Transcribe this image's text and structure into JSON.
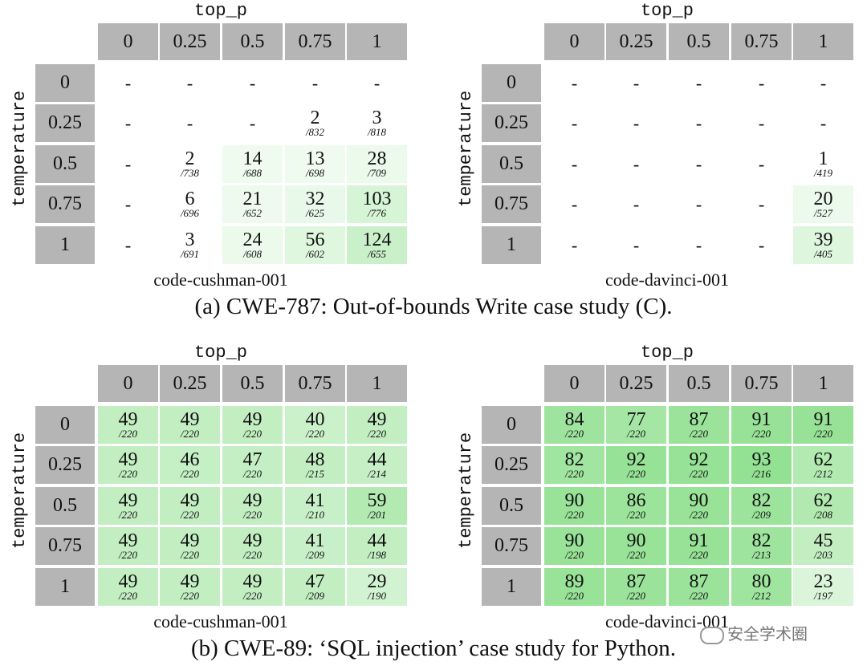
{
  "colors": {
    "header_bg": "#b5b5b5",
    "green_max": "#8fe08f"
  },
  "panels": [
    {
      "top_label": "top_p",
      "side_label": "temperature",
      "model": "code-cushman-001",
      "col_headers": [
        "0",
        "0.25",
        "0.5",
        "0.75",
        "1"
      ],
      "row_headers": [
        "0",
        "0.25",
        "0.5",
        "0.75",
        "1"
      ],
      "cells": [
        [
          {
            "v": "-"
          },
          {
            "v": "-"
          },
          {
            "v": "-"
          },
          {
            "v": "-"
          },
          {
            "v": "-"
          }
        ],
        [
          {
            "v": "-"
          },
          {
            "v": "-"
          },
          {
            "v": "-"
          },
          {
            "v": "2",
            "d": "/832"
          },
          {
            "v": "3",
            "d": "/818"
          }
        ],
        [
          {
            "v": "-"
          },
          {
            "v": "2",
            "d": "/738"
          },
          {
            "v": "14",
            "d": "/688"
          },
          {
            "v": "13",
            "d": "/698"
          },
          {
            "v": "28",
            "d": "/709"
          }
        ],
        [
          {
            "v": "-"
          },
          {
            "v": "6",
            "d": "/696"
          },
          {
            "v": "21",
            "d": "/652"
          },
          {
            "v": "32",
            "d": "/625"
          },
          {
            "v": "103",
            "d": "/776"
          }
        ],
        [
          {
            "v": "-"
          },
          {
            "v": "3",
            "d": "/691"
          },
          {
            "v": "24",
            "d": "/608"
          },
          {
            "v": "56",
            "d": "/602"
          },
          {
            "v": "124",
            "d": "/655"
          }
        ]
      ]
    },
    {
      "top_label": "top_p",
      "side_label": "temperature",
      "model": "code-davinci-001",
      "col_headers": [
        "0",
        "0.25",
        "0.5",
        "0.75",
        "1"
      ],
      "row_headers": [
        "0",
        "0.25",
        "0.5",
        "0.75",
        "1"
      ],
      "cells": [
        [
          {
            "v": "-"
          },
          {
            "v": "-"
          },
          {
            "v": "-"
          },
          {
            "v": "-"
          },
          {
            "v": "-"
          }
        ],
        [
          {
            "v": "-"
          },
          {
            "v": "-"
          },
          {
            "v": "-"
          },
          {
            "v": "-"
          },
          {
            "v": "-"
          }
        ],
        [
          {
            "v": "-"
          },
          {
            "v": "-"
          },
          {
            "v": "-"
          },
          {
            "v": "-"
          },
          {
            "v": "1",
            "d": "/419"
          }
        ],
        [
          {
            "v": "-"
          },
          {
            "v": "-"
          },
          {
            "v": "-"
          },
          {
            "v": "-"
          },
          {
            "v": "20",
            "d": "/527"
          }
        ],
        [
          {
            "v": "-"
          },
          {
            "v": "-"
          },
          {
            "v": "-"
          },
          {
            "v": "-"
          },
          {
            "v": "39",
            "d": "/405"
          }
        ]
      ]
    },
    {
      "top_label": "top_p",
      "side_label": "temperature",
      "model": "code-cushman-001",
      "col_headers": [
        "0",
        "0.25",
        "0.5",
        "0.75",
        "1"
      ],
      "row_headers": [
        "0",
        "0.25",
        "0.5",
        "0.75",
        "1"
      ],
      "cells": [
        [
          {
            "v": "49",
            "d": "/220"
          },
          {
            "v": "49",
            "d": "/220"
          },
          {
            "v": "49",
            "d": "/220"
          },
          {
            "v": "40",
            "d": "/220"
          },
          {
            "v": "49",
            "d": "/220"
          }
        ],
        [
          {
            "v": "49",
            "d": "/220"
          },
          {
            "v": "46",
            "d": "/220"
          },
          {
            "v": "47",
            "d": "/220"
          },
          {
            "v": "48",
            "d": "/215"
          },
          {
            "v": "44",
            "d": "/214"
          }
        ],
        [
          {
            "v": "49",
            "d": "/220"
          },
          {
            "v": "49",
            "d": "/220"
          },
          {
            "v": "49",
            "d": "/220"
          },
          {
            "v": "41",
            "d": "/210"
          },
          {
            "v": "59",
            "d": "/201"
          }
        ],
        [
          {
            "v": "49",
            "d": "/220"
          },
          {
            "v": "49",
            "d": "/220"
          },
          {
            "v": "49",
            "d": "/220"
          },
          {
            "v": "41",
            "d": "/209"
          },
          {
            "v": "44",
            "d": "/198"
          }
        ],
        [
          {
            "v": "49",
            "d": "/220"
          },
          {
            "v": "49",
            "d": "/220"
          },
          {
            "v": "49",
            "d": "/220"
          },
          {
            "v": "47",
            "d": "/209"
          },
          {
            "v": "29",
            "d": "/190"
          }
        ]
      ]
    },
    {
      "top_label": "top_p",
      "side_label": "temperature",
      "model": "code-davinci-001",
      "col_headers": [
        "0",
        "0.25",
        "0.5",
        "0.75",
        "1"
      ],
      "row_headers": [
        "0",
        "0.25",
        "0.5",
        "0.75",
        "1"
      ],
      "cells": [
        [
          {
            "v": "84",
            "d": "/220"
          },
          {
            "v": "77",
            "d": "/220"
          },
          {
            "v": "87",
            "d": "/220"
          },
          {
            "v": "91",
            "d": "/220"
          },
          {
            "v": "91",
            "d": "/220"
          }
        ],
        [
          {
            "v": "82",
            "d": "/220"
          },
          {
            "v": "92",
            "d": "/220"
          },
          {
            "v": "92",
            "d": "/220"
          },
          {
            "v": "93",
            "d": "/216"
          },
          {
            "v": "62",
            "d": "/212"
          }
        ],
        [
          {
            "v": "90",
            "d": "/220"
          },
          {
            "v": "86",
            "d": "/220"
          },
          {
            "v": "90",
            "d": "/220"
          },
          {
            "v": "82",
            "d": "/209"
          },
          {
            "v": "62",
            "d": "/208"
          }
        ],
        [
          {
            "v": "90",
            "d": "/220"
          },
          {
            "v": "90",
            "d": "/220"
          },
          {
            "v": "91",
            "d": "/220"
          },
          {
            "v": "82",
            "d": "/213"
          },
          {
            "v": "45",
            "d": "/203"
          }
        ],
        [
          {
            "v": "89",
            "d": "/220"
          },
          {
            "v": "87",
            "d": "/220"
          },
          {
            "v": "87",
            "d": "/220"
          },
          {
            "v": "80",
            "d": "/212"
          },
          {
            "v": "23",
            "d": "/197"
          }
        ]
      ]
    }
  ],
  "captions": {
    "a": "(a) CWE-787: Out-of-bounds Write case study (C).",
    "b": "(b) CWE-89: ‘SQL injection’ case study for Python."
  },
  "watermark": "安全学术圈"
}
